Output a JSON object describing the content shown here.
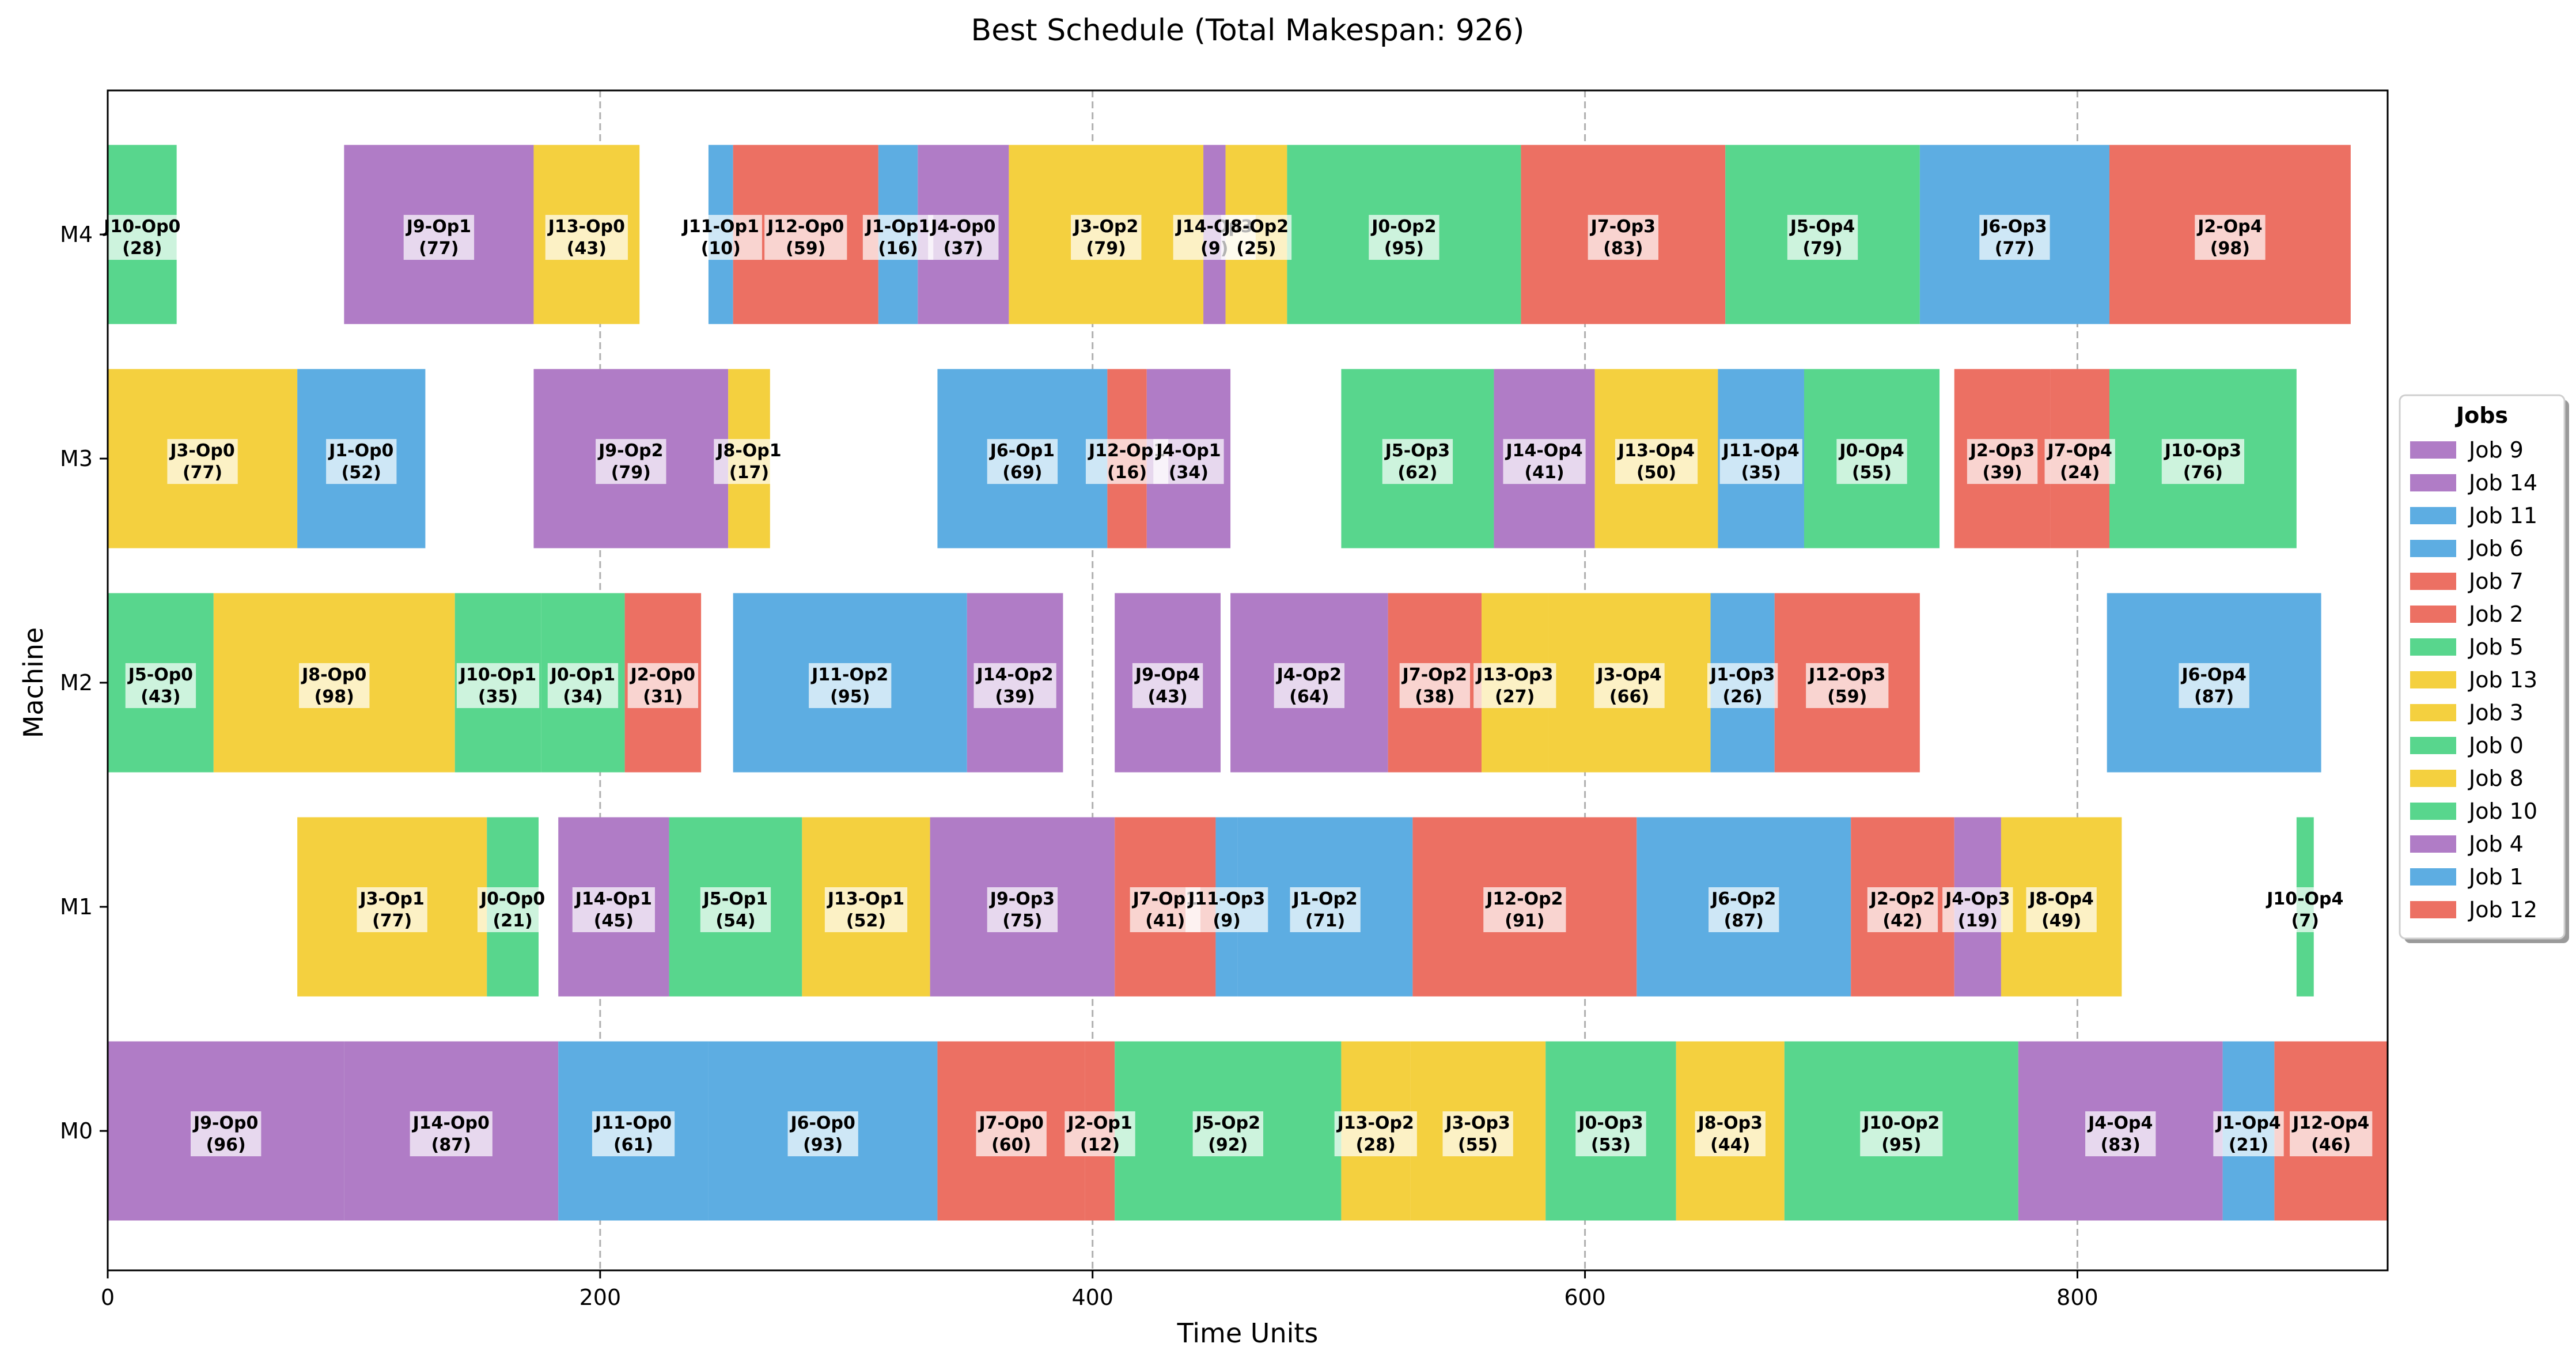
{
  "chart_data": {
    "type": "gantt",
    "title": "Best Schedule (Total Makespan: 926)",
    "xlabel": "Time Units",
    "ylabel": "Machine",
    "xlim": [
      0,
      926
    ],
    "x_ticks": [
      0,
      200,
      400,
      600,
      800
    ],
    "grid": "vertical dashed at x ticks",
    "machines": [
      "M0",
      "M1",
      "M2",
      "M3",
      "M4"
    ],
    "legend": {
      "title": "Jobs",
      "placement": "right",
      "entries": [
        {
          "name": "Job 9",
          "color": "#b07cc6"
        },
        {
          "name": "Job 14",
          "color": "#b07cc6"
        },
        {
          "name": "Job 11",
          "color": "#5dade2"
        },
        {
          "name": "Job 6",
          "color": "#5dade2"
        },
        {
          "name": "Job 7",
          "color": "#ec7063"
        },
        {
          "name": "Job 2",
          "color": "#ec7063"
        },
        {
          "name": "Job 5",
          "color": "#58d68d"
        },
        {
          "name": "Job 13",
          "color": "#f4d03f"
        },
        {
          "name": "Job 3",
          "color": "#f4d03f"
        },
        {
          "name": "Job 0",
          "color": "#58d68d"
        },
        {
          "name": "Job 8",
          "color": "#f4d03f"
        },
        {
          "name": "Job 10",
          "color": "#58d68d"
        },
        {
          "name": "Job 4",
          "color": "#b07cc6"
        },
        {
          "name": "Job 1",
          "color": "#5dade2"
        },
        {
          "name": "Job 12",
          "color": "#ec7063"
        }
      ]
    },
    "tasks": [
      {
        "machine": "M0",
        "label": "J9-Op0",
        "job": 9,
        "start": 0,
        "duration": 96
      },
      {
        "machine": "M0",
        "label": "J14-Op0",
        "job": 14,
        "start": 96,
        "duration": 87
      },
      {
        "machine": "M0",
        "label": "J11-Op0",
        "job": 11,
        "start": 183,
        "duration": 61
      },
      {
        "machine": "M0",
        "label": "J6-Op0",
        "job": 6,
        "start": 244,
        "duration": 93
      },
      {
        "machine": "M0",
        "label": "J7-Op0",
        "job": 7,
        "start": 337,
        "duration": 60
      },
      {
        "machine": "M0",
        "label": "J2-Op1",
        "job": 2,
        "start": 397,
        "duration": 12
      },
      {
        "machine": "M0",
        "label": "J5-Op2",
        "job": 5,
        "start": 409,
        "duration": 92
      },
      {
        "machine": "M0",
        "label": "J13-Op2",
        "job": 13,
        "start": 501,
        "duration": 28
      },
      {
        "machine": "M0",
        "label": "J3-Op3",
        "job": 3,
        "start": 529,
        "duration": 55
      },
      {
        "machine": "M0",
        "label": "J0-Op3",
        "job": 0,
        "start": 584,
        "duration": 53
      },
      {
        "machine": "M0",
        "label": "J8-Op3",
        "job": 8,
        "start": 637,
        "duration": 44
      },
      {
        "machine": "M0",
        "label": "J10-Op2",
        "job": 10,
        "start": 681,
        "duration": 95
      },
      {
        "machine": "M0",
        "label": "J4-Op4",
        "job": 4,
        "start": 776,
        "duration": 83
      },
      {
        "machine": "M0",
        "label": "J1-Op4",
        "job": 1,
        "start": 859,
        "duration": 21
      },
      {
        "machine": "M0",
        "label": "J12-Op4",
        "job": 12,
        "start": 880,
        "duration": 46
      },
      {
        "machine": "M1",
        "label": "J3-Op1",
        "job": 3,
        "start": 77,
        "duration": 77
      },
      {
        "machine": "M1",
        "label": "J0-Op0",
        "job": 0,
        "start": 154,
        "duration": 21
      },
      {
        "machine": "M1",
        "label": "J14-Op1",
        "job": 14,
        "start": 183,
        "duration": 45
      },
      {
        "machine": "M1",
        "label": "J5-Op1",
        "job": 5,
        "start": 228,
        "duration": 54
      },
      {
        "machine": "M1",
        "label": "J13-Op1",
        "job": 13,
        "start": 282,
        "duration": 52
      },
      {
        "machine": "M1",
        "label": "J9-Op3",
        "job": 9,
        "start": 334,
        "duration": 75
      },
      {
        "machine": "M1",
        "label": "J7-Op1",
        "job": 7,
        "start": 409,
        "duration": 41
      },
      {
        "machine": "M1",
        "label": "J11-Op3",
        "job": 11,
        "start": 450,
        "duration": 9
      },
      {
        "machine": "M1",
        "label": "J1-Op2",
        "job": 1,
        "start": 459,
        "duration": 71
      },
      {
        "machine": "M1",
        "label": "J12-Op2",
        "job": 12,
        "start": 530,
        "duration": 91
      },
      {
        "machine": "M1",
        "label": "J6-Op2",
        "job": 6,
        "start": 621,
        "duration": 87
      },
      {
        "machine": "M1",
        "label": "J2-Op2",
        "job": 2,
        "start": 708,
        "duration": 42
      },
      {
        "machine": "M1",
        "label": "J4-Op3",
        "job": 4,
        "start": 750,
        "duration": 19
      },
      {
        "machine": "M1",
        "label": "J8-Op4",
        "job": 8,
        "start": 769,
        "duration": 49
      },
      {
        "machine": "M1",
        "label": "J10-Op4",
        "job": 10,
        "start": 889,
        "duration": 7
      },
      {
        "machine": "M2",
        "label": "J5-Op0",
        "job": 5,
        "start": 0,
        "duration": 43
      },
      {
        "machine": "M2",
        "label": "J8-Op0",
        "job": 8,
        "start": 43,
        "duration": 98
      },
      {
        "machine": "M2",
        "label": "J10-Op1",
        "job": 10,
        "start": 141,
        "duration": 35
      },
      {
        "machine": "M2",
        "label": "J0-Op1",
        "job": 0,
        "start": 176,
        "duration": 34
      },
      {
        "machine": "M2",
        "label": "J2-Op0",
        "job": 2,
        "start": 210,
        "duration": 31
      },
      {
        "machine": "M2",
        "label": "J11-Op2",
        "job": 11,
        "start": 254,
        "duration": 95
      },
      {
        "machine": "M2",
        "label": "J14-Op2",
        "job": 14,
        "start": 349,
        "duration": 39
      },
      {
        "machine": "M2",
        "label": "J9-Op4",
        "job": 9,
        "start": 409,
        "duration": 43
      },
      {
        "machine": "M2",
        "label": "J4-Op2",
        "job": 4,
        "start": 456,
        "duration": 64
      },
      {
        "machine": "M2",
        "label": "J7-Op2",
        "job": 7,
        "start": 520,
        "duration": 38
      },
      {
        "machine": "M2",
        "label": "J13-Op3",
        "job": 13,
        "start": 558,
        "duration": 27
      },
      {
        "machine": "M2",
        "label": "J3-Op4",
        "job": 3,
        "start": 585,
        "duration": 66
      },
      {
        "machine": "M2",
        "label": "J1-Op3",
        "job": 1,
        "start": 651,
        "duration": 26
      },
      {
        "machine": "M2",
        "label": "J12-Op3",
        "job": 12,
        "start": 677,
        "duration": 59
      },
      {
        "machine": "M2",
        "label": "J6-Op4",
        "job": 6,
        "start": 812,
        "duration": 87
      },
      {
        "machine": "M3",
        "label": "J3-Op0",
        "job": 3,
        "start": 0,
        "duration": 77
      },
      {
        "machine": "M3",
        "label": "J1-Op0",
        "job": 1,
        "start": 77,
        "duration": 52
      },
      {
        "machine": "M3",
        "label": "J9-Op2",
        "job": 9,
        "start": 173,
        "duration": 79
      },
      {
        "machine": "M3",
        "label": "J8-Op1",
        "job": 8,
        "start": 252,
        "duration": 17
      },
      {
        "machine": "M3",
        "label": "J6-Op1",
        "job": 6,
        "start": 337,
        "duration": 69
      },
      {
        "machine": "M3",
        "label": "J12-Op1",
        "job": 12,
        "start": 406,
        "duration": 16
      },
      {
        "machine": "M3",
        "label": "J4-Op1",
        "job": 4,
        "start": 422,
        "duration": 34
      },
      {
        "machine": "M3",
        "label": "J5-Op3",
        "job": 5,
        "start": 501,
        "duration": 62
      },
      {
        "machine": "M3",
        "label": "J14-Op4",
        "job": 14,
        "start": 563,
        "duration": 41
      },
      {
        "machine": "M3",
        "label": "J13-Op4",
        "job": 13,
        "start": 604,
        "duration": 50
      },
      {
        "machine": "M3",
        "label": "J11-Op4",
        "job": 11,
        "start": 654,
        "duration": 35
      },
      {
        "machine": "M3",
        "label": "J0-Op4",
        "job": 0,
        "start": 689,
        "duration": 55
      },
      {
        "machine": "M3",
        "label": "J2-Op3",
        "job": 2,
        "start": 750,
        "duration": 39
      },
      {
        "machine": "M3",
        "label": "J7-Op4",
        "job": 7,
        "start": 789,
        "duration": 24
      },
      {
        "machine": "M3",
        "label": "J10-Op3",
        "job": 10,
        "start": 813,
        "duration": 76
      },
      {
        "machine": "M4",
        "label": "J10-Op0",
        "job": 10,
        "start": 0,
        "duration": 28
      },
      {
        "machine": "M4",
        "label": "J9-Op1",
        "job": 9,
        "start": 96,
        "duration": 77
      },
      {
        "machine": "M4",
        "label": "J13-Op0",
        "job": 13,
        "start": 173,
        "duration": 43
      },
      {
        "machine": "M4",
        "label": "J11-Op1",
        "job": 11,
        "start": 244,
        "duration": 10
      },
      {
        "machine": "M4",
        "label": "J12-Op0",
        "job": 12,
        "start": 254,
        "duration": 59
      },
      {
        "machine": "M4",
        "label": "J1-Op1",
        "job": 1,
        "start": 313,
        "duration": 16
      },
      {
        "machine": "M4",
        "label": "J4-Op0",
        "job": 4,
        "start": 329,
        "duration": 37
      },
      {
        "machine": "M4",
        "label": "J3-Op2",
        "job": 3,
        "start": 366,
        "duration": 79
      },
      {
        "machine": "M4",
        "label": "J14-Op3",
        "job": 14,
        "start": 445,
        "duration": 9
      },
      {
        "machine": "M4",
        "label": "J8-Op2",
        "job": 8,
        "start": 454,
        "duration": 25
      },
      {
        "machine": "M4",
        "label": "J0-Op2",
        "job": 0,
        "start": 479,
        "duration": 95
      },
      {
        "machine": "M4",
        "label": "J7-Op3",
        "job": 7,
        "start": 574,
        "duration": 83
      },
      {
        "machine": "M4",
        "label": "J5-Op4",
        "job": 5,
        "start": 657,
        "duration": 79
      },
      {
        "machine": "M4",
        "label": "J6-Op3",
        "job": 6,
        "start": 736,
        "duration": 77
      },
      {
        "machine": "M4",
        "label": "J2-Op4",
        "job": 2,
        "start": 813,
        "duration": 98
      }
    ]
  }
}
